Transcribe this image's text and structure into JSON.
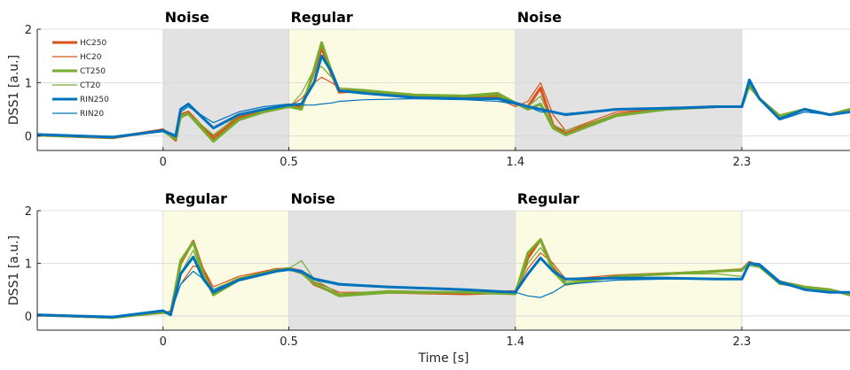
{
  "chart_data": [
    {
      "type": "line",
      "title": "",
      "xlabel": "",
      "ylabel": "DSS1 [a.u.]",
      "xlim": [
        -0.5,
        2.73
      ],
      "ylim": [
        -0.27,
        2.0
      ],
      "xticks": [
        0,
        0.5,
        1.4,
        2.3
      ],
      "xtick_labels": [
        "0",
        "0.5",
        "1.4",
        "2.3"
      ],
      "yticks": [
        0,
        1,
        2
      ],
      "ytick_labels": [
        "0",
        "1",
        "2"
      ],
      "grid": true,
      "legend": {
        "placement": "top-left",
        "entries": [
          "HC250",
          "HC20",
          "CT250",
          "CT20",
          "RIN250",
          "RIN20"
        ]
      },
      "regions": [
        {
          "label": "Noise",
          "start": 0,
          "end": 0.5,
          "color": "#e2e2e2"
        },
        {
          "label": "Regular",
          "start": 0.5,
          "end": 1.4,
          "color": "#fbfbe3"
        },
        {
          "label": "Noise",
          "start": 1.4,
          "end": 2.3,
          "color": "#e2e2e2"
        }
      ],
      "series": [
        {
          "name": "HC250",
          "color": "#d95319",
          "width": 3,
          "x": [
            -0.5,
            -0.2,
            0,
            0.05,
            0.07,
            0.1,
            0.2,
            0.3,
            0.4,
            0.5,
            0.55,
            0.6,
            0.63,
            0.67,
            0.7,
            0.8,
            1.0,
            1.2,
            1.33,
            1.4,
            1.45,
            1.5,
            1.55,
            1.6,
            1.8,
            2.0,
            2.2,
            2.3,
            2.33,
            2.37,
            2.45,
            2.55,
            2.65,
            2.73
          ],
          "y": [
            0.02,
            -0.03,
            0.12,
            -0.08,
            0.4,
            0.45,
            -0.05,
            0.35,
            0.48,
            0.55,
            0.55,
            1.2,
            1.65,
            1.15,
            0.82,
            0.85,
            0.75,
            0.72,
            0.75,
            0.6,
            0.55,
            0.9,
            0.2,
            0.05,
            0.4,
            0.5,
            0.55,
            0.55,
            0.98,
            0.7,
            0.38,
            0.5,
            0.4,
            0.5
          ]
        },
        {
          "name": "HC20",
          "color": "#d95319",
          "width": 1.2,
          "x": [
            -0.5,
            -0.2,
            0,
            0.05,
            0.07,
            0.1,
            0.2,
            0.3,
            0.4,
            0.5,
            0.55,
            0.6,
            0.63,
            0.67,
            0.7,
            0.8,
            1.0,
            1.2,
            1.33,
            1.4,
            1.45,
            1.5,
            1.55,
            1.6,
            1.8,
            2.0,
            2.2,
            2.3,
            2.33,
            2.37,
            2.45,
            2.55,
            2.65,
            2.73
          ],
          "y": [
            0,
            -0.05,
            0.1,
            -0.05,
            0.35,
            0.4,
            0,
            0.4,
            0.5,
            0.55,
            0.7,
            1.0,
            1.1,
            1.0,
            0.9,
            0.85,
            0.75,
            0.7,
            0.7,
            0.55,
            0.65,
            1.0,
            0.4,
            0.1,
            0.45,
            0.5,
            0.55,
            0.55,
            0.95,
            0.7,
            0.35,
            0.5,
            0.4,
            0.5
          ]
        },
        {
          "name": "CT250",
          "color": "#77ac30",
          "width": 3,
          "x": [
            -0.5,
            -0.2,
            0,
            0.05,
            0.07,
            0.1,
            0.2,
            0.3,
            0.4,
            0.5,
            0.55,
            0.6,
            0.63,
            0.67,
            0.7,
            0.8,
            1.0,
            1.2,
            1.33,
            1.4,
            1.45,
            1.5,
            1.55,
            1.6,
            1.8,
            2.0,
            2.2,
            2.3,
            2.33,
            2.37,
            2.45,
            2.55,
            2.65,
            2.73
          ],
          "y": [
            0.02,
            -0.02,
            0.1,
            -0.06,
            0.38,
            0.42,
            -0.1,
            0.3,
            0.45,
            0.55,
            0.5,
            1.25,
            1.75,
            1.2,
            0.85,
            0.85,
            0.77,
            0.75,
            0.8,
            0.62,
            0.5,
            0.6,
            0.15,
            0.02,
            0.38,
            0.5,
            0.55,
            0.55,
            0.95,
            0.7,
            0.38,
            0.5,
            0.4,
            0.5
          ]
        },
        {
          "name": "CT20",
          "color": "#77ac30",
          "width": 1.2,
          "x": [
            -0.5,
            -0.2,
            0,
            0.05,
            0.07,
            0.1,
            0.2,
            0.3,
            0.4,
            0.5,
            0.55,
            0.6,
            0.63,
            0.67,
            0.7,
            0.8,
            1.0,
            1.2,
            1.33,
            1.4,
            1.45,
            1.5,
            1.55,
            1.6,
            1.8,
            2.0,
            2.2,
            2.3,
            2.33,
            2.37,
            2.45,
            2.55,
            2.65,
            2.73
          ],
          "y": [
            0,
            -0.04,
            0.11,
            -0.04,
            0.33,
            0.42,
            0.02,
            0.38,
            0.48,
            0.53,
            0.8,
            1.25,
            1.3,
            1.1,
            0.9,
            0.87,
            0.78,
            0.74,
            0.75,
            0.6,
            0.55,
            0.75,
            0.2,
            0.1,
            0.4,
            0.5,
            0.55,
            0.55,
            0.9,
            0.7,
            0.38,
            0.5,
            0.4,
            0.5
          ]
        },
        {
          "name": "RIN250",
          "color": "#0072bd",
          "width": 3,
          "x": [
            -0.5,
            -0.2,
            0,
            0.05,
            0.07,
            0.1,
            0.2,
            0.3,
            0.4,
            0.5,
            0.55,
            0.6,
            0.63,
            0.67,
            0.7,
            0.8,
            1.0,
            1.2,
            1.33,
            1.4,
            1.45,
            1.5,
            1.55,
            1.6,
            1.8,
            2.0,
            2.2,
            2.3,
            2.33,
            2.37,
            2.45,
            2.55,
            2.65,
            2.73
          ],
          "y": [
            0.03,
            -0.02,
            0.1,
            0,
            0.5,
            0.6,
            0.15,
            0.4,
            0.5,
            0.58,
            0.6,
            1.0,
            1.5,
            1.2,
            0.85,
            0.8,
            0.72,
            0.7,
            0.7,
            0.62,
            0.55,
            0.5,
            0.45,
            0.4,
            0.5,
            0.52,
            0.55,
            0.55,
            1.05,
            0.7,
            0.32,
            0.5,
            0.4,
            0.45
          ]
        },
        {
          "name": "RIN20",
          "color": "#0072bd",
          "width": 1.2,
          "x": [
            -0.5,
            -0.2,
            0,
            0.05,
            0.07,
            0.1,
            0.2,
            0.3,
            0.4,
            0.5,
            0.55,
            0.6,
            0.63,
            0.67,
            0.7,
            0.8,
            1.0,
            1.2,
            1.33,
            1.4,
            1.45,
            1.5,
            1.55,
            1.6,
            1.8,
            2.0,
            2.2,
            2.3,
            2.33,
            2.37,
            2.45,
            2.55,
            2.65,
            2.73
          ],
          "y": [
            0.02,
            -0.03,
            0.12,
            0.02,
            0.45,
            0.55,
            0.25,
            0.45,
            0.55,
            0.6,
            0.58,
            0.58,
            0.6,
            0.62,
            0.65,
            0.68,
            0.7,
            0.68,
            0.65,
            0.6,
            0.55,
            0.45,
            0.45,
            0.42,
            0.5,
            0.52,
            0.55,
            0.55,
            1.0,
            0.7,
            0.3,
            0.45,
            0.4,
            0.45
          ]
        }
      ]
    },
    {
      "type": "line",
      "title": "",
      "xlabel": "Time [s]",
      "ylabel": "DSS1 [a.u.]",
      "xlim": [
        -0.5,
        2.73
      ],
      "ylim": [
        -0.27,
        2.0
      ],
      "xticks": [
        0,
        0.5,
        1.4,
        2.3
      ],
      "xtick_labels": [
        "0",
        "0.5",
        "1.4",
        "2.3"
      ],
      "yticks": [
        0,
        1,
        2
      ],
      "ytick_labels": [
        "0",
        "1",
        "2"
      ],
      "grid": true,
      "regions": [
        {
          "label": "Regular",
          "start": 0,
          "end": 0.5,
          "color": "#fbfbe3"
        },
        {
          "label": "Noise",
          "start": 0.5,
          "end": 1.4,
          "color": "#e2e2e2"
        },
        {
          "label": "Regular",
          "start": 1.4,
          "end": 2.3,
          "color": "#fbfbe3"
        }
      ],
      "series": [
        {
          "name": "HC250",
          "color": "#d95319",
          "width": 3,
          "x": [
            -0.5,
            -0.2,
            0,
            0.03,
            0.07,
            0.12,
            0.16,
            0.2,
            0.3,
            0.45,
            0.5,
            0.55,
            0.6,
            0.7,
            0.9,
            1.2,
            1.4,
            1.45,
            1.5,
            1.55,
            1.6,
            1.8,
            2.0,
            2.2,
            2.3,
            2.33,
            2.37,
            2.45,
            2.55,
            2.65,
            2.73
          ],
          "y": [
            0.02,
            -0.03,
            0.08,
            0.05,
            1.0,
            1.42,
            0.85,
            0.45,
            0.7,
            0.88,
            0.9,
            0.85,
            0.6,
            0.4,
            0.45,
            0.42,
            0.45,
            1.1,
            1.45,
            0.9,
            0.6,
            0.75,
            0.8,
            0.85,
            0.88,
            1.02,
            0.95,
            0.65,
            0.55,
            0.5,
            0.4
          ]
        },
        {
          "name": "HC20",
          "color": "#d95319",
          "width": 1.2,
          "x": [
            -0.5,
            -0.2,
            0,
            0.03,
            0.07,
            0.12,
            0.16,
            0.2,
            0.3,
            0.45,
            0.5,
            0.55,
            0.6,
            0.7,
            0.9,
            1.2,
            1.4,
            1.45,
            1.5,
            1.55,
            1.6,
            1.8,
            2.0,
            2.2,
            2.3,
            2.33,
            2.37,
            2.45,
            2.55,
            2.65,
            2.73
          ],
          "y": [
            0,
            -0.04,
            0.05,
            0.1,
            0.6,
            0.95,
            0.9,
            0.55,
            0.75,
            0.9,
            0.88,
            0.8,
            0.65,
            0.45,
            0.45,
            0.45,
            0.48,
            0.9,
            1.2,
            1.0,
            0.7,
            0.78,
            0.82,
            0.85,
            0.85,
            1.0,
            0.95,
            0.6,
            0.55,
            0.5,
            0.4
          ]
        },
        {
          "name": "CT250",
          "color": "#77ac30",
          "width": 3,
          "x": [
            -0.5,
            -0.2,
            0,
            0.03,
            0.07,
            0.12,
            0.16,
            0.2,
            0.3,
            0.45,
            0.5,
            0.55,
            0.6,
            0.7,
            0.9,
            1.2,
            1.4,
            1.45,
            1.5,
            1.55,
            1.6,
            1.8,
            2.0,
            2.2,
            2.3,
            2.33,
            2.37,
            2.45,
            2.55,
            2.65,
            2.73
          ],
          "y": [
            0.02,
            -0.03,
            0.07,
            0.04,
            1.05,
            1.4,
            0.8,
            0.4,
            0.68,
            0.85,
            0.9,
            0.82,
            0.62,
            0.38,
            0.45,
            0.45,
            0.42,
            1.2,
            1.45,
            0.85,
            0.6,
            0.75,
            0.8,
            0.85,
            0.87,
            1.0,
            0.95,
            0.65,
            0.55,
            0.5,
            0.4
          ]
        },
        {
          "name": "CT20",
          "color": "#77ac30",
          "width": 1.2,
          "x": [
            -0.5,
            -0.2,
            0,
            0.03,
            0.07,
            0.12,
            0.16,
            0.2,
            0.3,
            0.45,
            0.5,
            0.55,
            0.6,
            0.7,
            0.9,
            1.2,
            1.4,
            1.45,
            1.5,
            1.55,
            1.6,
            1.8,
            2.0,
            2.2,
            2.3,
            2.33,
            2.37,
            2.45,
            2.55,
            2.65,
            2.73
          ],
          "y": [
            0.01,
            -0.03,
            0.06,
            0.08,
            0.8,
            1.25,
            0.75,
            0.5,
            0.72,
            0.88,
            0.9,
            1.05,
            0.7,
            0.42,
            0.48,
            0.45,
            0.45,
            1.0,
            1.3,
            0.95,
            0.65,
            0.75,
            0.8,
            0.8,
            0.75,
            0.95,
            0.92,
            0.6,
            0.55,
            0.5,
            0.4
          ]
        },
        {
          "name": "RIN250",
          "color": "#0072bd",
          "width": 3,
          "x": [
            -0.5,
            -0.2,
            0,
            0.03,
            0.07,
            0.12,
            0.16,
            0.2,
            0.3,
            0.45,
            0.5,
            0.55,
            0.6,
            0.7,
            0.9,
            1.2,
            1.4,
            1.45,
            1.5,
            1.55,
            1.6,
            1.8,
            2.0,
            2.2,
            2.3,
            2.33,
            2.37,
            2.45,
            2.55,
            2.65,
            2.73
          ],
          "y": [
            0.02,
            -0.02,
            0.1,
            0.02,
            0.8,
            1.12,
            0.7,
            0.45,
            0.68,
            0.85,
            0.88,
            0.85,
            0.7,
            0.6,
            0.55,
            0.5,
            0.45,
            0.8,
            1.1,
            0.85,
            0.7,
            0.72,
            0.72,
            0.7,
            0.7,
            1.0,
            0.98,
            0.65,
            0.5,
            0.45,
            0.45
          ]
        },
        {
          "name": "RIN20",
          "color": "#0072bd",
          "width": 1.2,
          "x": [
            -0.5,
            -0.2,
            0,
            0.03,
            0.07,
            0.12,
            0.16,
            0.2,
            0.3,
            0.45,
            0.5,
            0.55,
            0.6,
            0.7,
            0.9,
            1.2,
            1.4,
            1.45,
            1.5,
            1.55,
            1.6,
            1.8,
            2.0,
            2.2,
            2.3,
            2.33,
            2.37,
            2.45,
            2.55,
            2.65,
            2.73
          ],
          "y": [
            0.02,
            -0.02,
            0.1,
            0.05,
            0.6,
            0.85,
            0.7,
            0.5,
            0.68,
            0.85,
            0.88,
            0.82,
            0.72,
            0.62,
            0.55,
            0.5,
            0.45,
            0.38,
            0.35,
            0.45,
            0.6,
            0.68,
            0.7,
            0.7,
            0.7,
            0.98,
            0.95,
            0.62,
            0.5,
            0.45,
            0.45
          ]
        }
      ]
    }
  ]
}
